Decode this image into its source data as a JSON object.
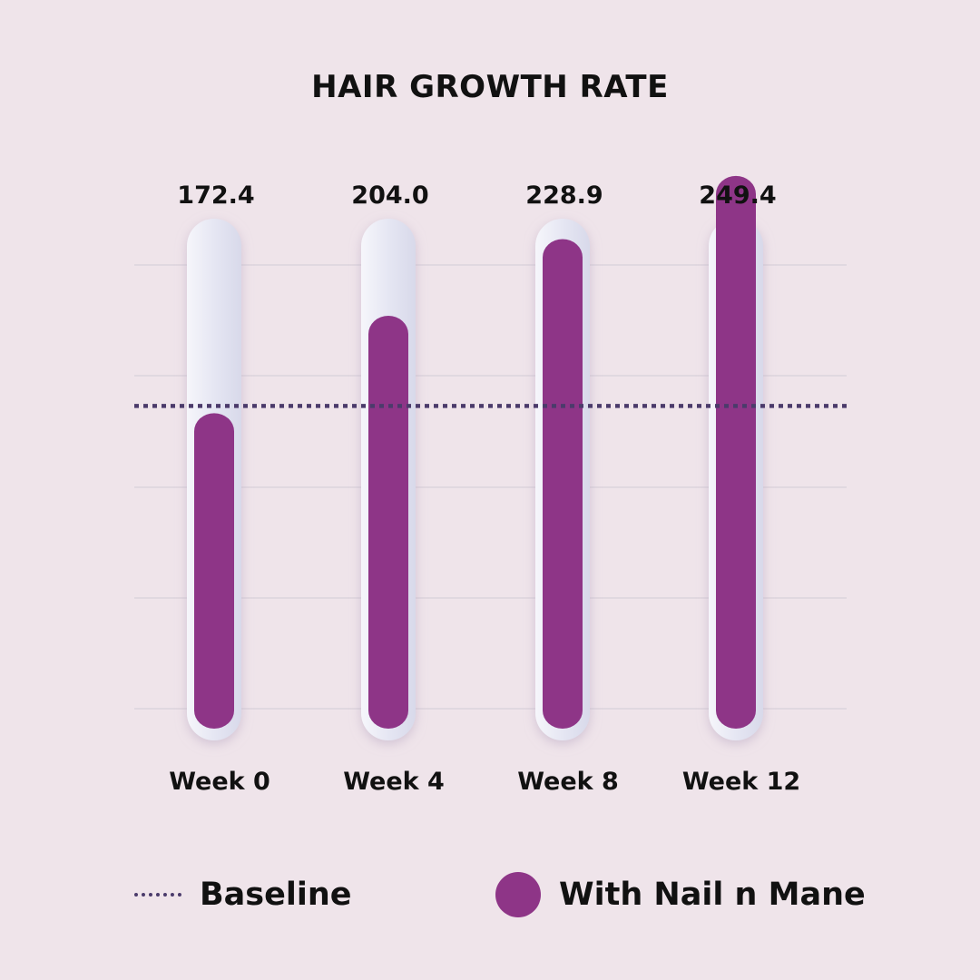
{
  "chart_data": {
    "type": "bar",
    "title": "HAIR GROWTH RATE",
    "categories": [
      "Week 0",
      "Week 4",
      "Week 8",
      "Week 12"
    ],
    "series": [
      {
        "name": "With Nail n Mane",
        "values": [
          172.4,
          204.0,
          228.9,
          249.4
        ],
        "labels": [
          "172.4",
          "204.0",
          "228.9",
          "249.4"
        ]
      }
    ],
    "baseline": {
      "name": "Baseline",
      "value": 172.4
    },
    "ylim": [
      70,
      280
    ],
    "grid": true,
    "legend_position": "bottom",
    "colors": {
      "bar": "#8e3587",
      "tube": "#e3e4f1",
      "baseline": "#4b3b6b",
      "grid": "#dcd3dc",
      "background": "#efe4ea"
    }
  },
  "legend": {
    "baseline_label": "Baseline",
    "product_label": "With Nail n Mane"
  }
}
